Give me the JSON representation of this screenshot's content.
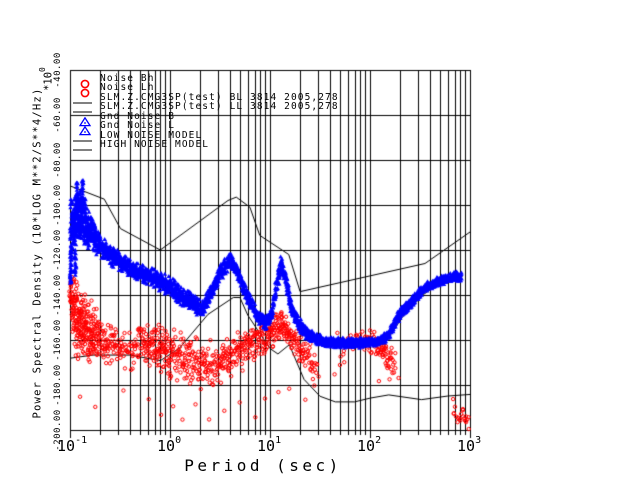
{
  "window_background": "#ffffff",
  "colors": {
    "red_series": "#ff0000",
    "blue_series": "#0000ff",
    "lines_and_text": "#000000"
  },
  "legend": {
    "entries": [
      {
        "label": "Noise Bh",
        "symbol": "red-circle"
      },
      {
        "label": "Noise Lh",
        "symbol": "red-circle"
      },
      {
        "label": "SLM.Z.CMG3SP(test) BL 3814 2005,278",
        "symbol": "black-line"
      },
      {
        "label": "SLM.Z.CMG3SP(test) LL 3814 2005,278",
        "symbol": "black-line"
      },
      {
        "label": "Gnd Noise B",
        "symbol": "blue-triangle"
      },
      {
        "label": "Gnd Noise L",
        "symbol": "blue-triangle"
      },
      {
        "label": "LOW NOISE MODEL",
        "symbol": "black-line"
      },
      {
        "label": "HIGH NOISE MODEL",
        "symbol": "black-line"
      }
    ]
  },
  "x_axis": {
    "label": "Period (sec)",
    "scale": "log",
    "ticks": [
      {
        "value": 0.1,
        "base": "10",
        "exp": "-1"
      },
      {
        "value": 1,
        "base": "10",
        "exp": "0"
      },
      {
        "value": 10,
        "base": "10",
        "exp": "1"
      },
      {
        "value": 100,
        "base": "10",
        "exp": "2"
      },
      {
        "value": 1000,
        "base": "10",
        "exp": "3"
      }
    ]
  },
  "y_axis": {
    "label": "Power Spectral Density (10*LOG M**2/S**4/Hz)",
    "multiplier_base": "*10",
    "multiplier_exp": "0",
    "tick_labels": [
      "-200.00",
      "-180.00",
      "-160.00",
      "-140.00",
      "-120.00",
      "-100.00",
      "-80.00",
      "-60.00",
      "-40.00"
    ]
  },
  "chart_data": {
    "type": "scatter",
    "xlabel": "Period (sec)",
    "ylabel": "Power Spectral Density (10*LOG M**2/S**4/Hz)",
    "x_scale": "log",
    "xlim": [
      0.1,
      1000
    ],
    "ylim": [
      -200,
      -40
    ],
    "y_ticks": [
      -200,
      -180,
      -160,
      -140,
      -120,
      -100,
      -80,
      -60,
      -40
    ],
    "grid": true,
    "legend_position": "top-left-inside",
    "series": [
      {
        "name": "Gnd Noise B/L (blue scatter band)",
        "marker": "triangle",
        "color": "#0000ff",
        "band_period_center_halfwidth": [
          [
            0.1,
            -110,
            15
          ],
          [
            0.108,
            -107,
            11
          ],
          [
            0.12,
            -108,
            9
          ],
          [
            0.14,
            -110,
            8
          ],
          [
            0.17,
            -114,
            7
          ],
          [
            0.21,
            -119,
            5
          ],
          [
            0.27,
            -123,
            4.5
          ],
          [
            0.35,
            -126.5,
            4
          ],
          [
            0.45,
            -129,
            3.5
          ],
          [
            0.6,
            -131.5,
            4
          ],
          [
            0.85,
            -134.5,
            4.5
          ],
          [
            1.2,
            -139,
            4.5
          ],
          [
            1.7,
            -144,
            4
          ],
          [
            2.1,
            -146.5,
            3.5
          ],
          [
            2.6,
            -139,
            3.5
          ],
          [
            3.2,
            -130,
            3.5
          ],
          [
            4.0,
            -124.5,
            3.5
          ],
          [
            4.8,
            -130,
            3
          ],
          [
            6.0,
            -141,
            3
          ],
          [
            7.5,
            -149,
            3
          ],
          [
            9.0,
            -152.5,
            3
          ],
          [
            10.5,
            -148,
            3
          ],
          [
            11.8,
            -134,
            4
          ],
          [
            13.0,
            -126,
            4
          ],
          [
            14.5,
            -134,
            4
          ],
          [
            16.5,
            -146,
            3.5
          ],
          [
            19.0,
            -152,
            3
          ],
          [
            23.0,
            -157,
            3
          ],
          [
            28.0,
            -159.5,
            2.5
          ],
          [
            40.0,
            -161,
            2.2
          ],
          [
            70.0,
            -161.5,
            2.2
          ],
          [
            110,
            -161,
            2.2
          ],
          [
            150,
            -158.5,
            2.2
          ],
          [
            200,
            -148,
            2.5
          ],
          [
            260,
            -143,
            2.5
          ],
          [
            350,
            -137,
            2.2
          ],
          [
            450,
            -134.5,
            2.2
          ],
          [
            560,
            -133,
            2.2
          ],
          [
            700,
            -132,
            2.2
          ],
          [
            820,
            -131.5,
            2.2
          ]
        ],
        "spikes_period_top_bottom": [
          [
            0.107,
            -103,
            -118
          ],
          [
            0.112,
            -95,
            -116
          ],
          [
            0.118,
            -90,
            -114
          ],
          [
            0.125,
            -93,
            -113
          ],
          [
            0.133,
            -89,
            -112
          ],
          [
            0.141,
            -97,
            -113
          ],
          [
            0.152,
            -101,
            -115
          ],
          [
            0.163,
            -105,
            -116
          ],
          [
            0.178,
            -109,
            -118
          ],
          [
            0.195,
            -113,
            -120
          ],
          [
            0.102,
            -118,
            -136
          ],
          [
            0.113,
            -120,
            -132
          ]
        ]
      },
      {
        "name": "Noise Bh/Lh (red scatter band)",
        "marker": "open-circle",
        "color": "#ff0000",
        "band_period_center_halfwidth_density": [
          [
            0.1,
            -138,
            8,
            1.1
          ],
          [
            0.106,
            -146,
            14,
            1.5
          ],
          [
            0.115,
            -152,
            18,
            1.6
          ],
          [
            0.13,
            -154,
            18,
            1.6
          ],
          [
            0.15,
            -156,
            16,
            1.3
          ],
          [
            0.18,
            -158,
            13,
            1.0
          ],
          [
            0.22,
            -161,
            11,
            0.6
          ],
          [
            0.28,
            -163,
            10,
            0.4
          ],
          [
            0.38,
            -165,
            9,
            0.28
          ],
          [
            0.55,
            -161,
            9,
            0.5
          ],
          [
            0.75,
            -163,
            10,
            0.65
          ],
          [
            1.0,
            -166,
            11,
            0.6
          ],
          [
            1.5,
            -169,
            12,
            0.5
          ],
          [
            2.2,
            -171,
            11,
            0.5
          ],
          [
            3.2,
            -169,
            10,
            0.5
          ],
          [
            4.5,
            -166,
            9,
            0.5
          ],
          [
            6.5,
            -163,
            9,
            0.55
          ],
          [
            9.0,
            -159,
            8,
            0.6
          ],
          [
            11.5,
            -155,
            7,
            0.65
          ],
          [
            13.0,
            -152.5,
            6,
            0.75
          ],
          [
            15.0,
            -157,
            7,
            0.55
          ],
          [
            19.0,
            -163,
            7,
            0.45
          ],
          [
            25.0,
            -169,
            8,
            0.4
          ],
          [
            31.0,
            -173,
            6,
            0.2
          ],
          [
            33.0,
            -173,
            6,
            0
          ],
          [
            44.0,
            -164,
            8,
            0
          ],
          [
            50.0,
            -164,
            8,
            0.12
          ],
          [
            90.0,
            -160,
            5,
            0.25
          ],
          [
            120,
            -162,
            6,
            0.5
          ],
          [
            150,
            -167,
            7,
            0.5
          ],
          [
            185,
            -172,
            5,
            0.15
          ],
          [
            200,
            -174,
            5,
            0
          ],
          [
            650,
            -189,
            4,
            0
          ],
          [
            700,
            -191,
            4,
            0.15
          ],
          [
            850,
            -194,
            4,
            0.18
          ],
          [
            960,
            -197,
            3,
            0.12
          ]
        ],
        "outliers_period_db": [
          [
            0.13,
            -185
          ],
          [
            0.18,
            -190
          ],
          [
            0.35,
            -182
          ],
          [
            0.6,
            -186
          ],
          [
            0.8,
            -193
          ],
          [
            1.1,
            -190
          ],
          [
            1.3,
            -196
          ],
          [
            1.8,
            -188
          ],
          [
            2.5,
            -195
          ],
          [
            3.5,
            -192
          ],
          [
            5,
            -188
          ],
          [
            7,
            -195
          ],
          [
            9,
            -186
          ],
          [
            12,
            -183
          ],
          [
            16,
            -181
          ],
          [
            22,
            -186
          ],
          [
            28,
            -180
          ],
          [
            45,
            -175
          ],
          [
            55,
            -170
          ],
          [
            120,
            -178
          ],
          [
            160,
            -177
          ],
          [
            700,
            -186
          ],
          [
            750,
            -196
          ],
          [
            850,
            -191
          ],
          [
            950,
            -199
          ],
          [
            980,
            -194
          ]
        ]
      },
      {
        "name": "SLM.Z.CMG3SP(test) BL/LL trace",
        "type": "line",
        "color": "#000000",
        "points_period_db": [
          [
            140,
            -162
          ],
          [
            170,
            -156
          ],
          [
            210,
            -150
          ],
          [
            270,
            -144.5
          ],
          [
            350,
            -139.5
          ],
          [
            450,
            -136
          ],
          [
            560,
            -134
          ],
          [
            700,
            -132.5
          ],
          [
            850,
            -131.5
          ]
        ]
      },
      {
        "name": "LOW NOISE MODEL",
        "type": "line",
        "color": "#000000",
        "points_period_db": [
          [
            0.1,
            -168.1
          ],
          [
            0.17,
            -166.7
          ],
          [
            0.4,
            -166.7
          ],
          [
            0.8,
            -169.2
          ],
          [
            1.24,
            -163.7
          ],
          [
            2.4,
            -148.6
          ],
          [
            4.3,
            -141.1
          ],
          [
            5.0,
            -141.1
          ],
          [
            6.0,
            -149.0
          ],
          [
            10.0,
            -163.8
          ],
          [
            12.0,
            -166.2
          ],
          [
            15.6,
            -162.1
          ],
          [
            21.9,
            -177.5
          ],
          [
            31.6,
            -185.0
          ],
          [
            45.0,
            -187.5
          ],
          [
            70.0,
            -187.5
          ],
          [
            101.0,
            -185.8
          ],
          [
            154.0,
            -184.4
          ],
          [
            328.0,
            -186.5
          ],
          [
            600.0,
            -184.9
          ],
          [
            1000,
            -184.2
          ]
        ]
      },
      {
        "name": "HIGH NOISE MODEL",
        "type": "line",
        "color": "#000000",
        "points_period_db": [
          [
            0.1,
            -91.5
          ],
          [
            0.22,
            -97.4
          ],
          [
            0.32,
            -110.5
          ],
          [
            0.8,
            -120
          ],
          [
            3.8,
            -98
          ],
          [
            4.6,
            -96.5
          ],
          [
            6.3,
            -101
          ],
          [
            7.9,
            -113.5
          ],
          [
            15.4,
            -122
          ],
          [
            20,
            -138.5
          ],
          [
            354.8,
            -126
          ],
          [
            1000,
            -112
          ]
        ]
      }
    ]
  }
}
